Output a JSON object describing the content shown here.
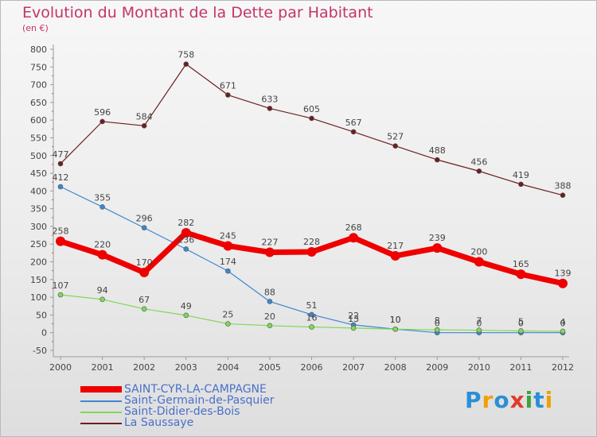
{
  "title": "Evolution du Montant de la Dette par Habitant",
  "unit_label": "(en €)",
  "logo": {
    "text": "Proxiti",
    "letters": [
      "P",
      "r",
      "o",
      "x",
      "i",
      "t",
      "i"
    ],
    "colors": [
      "#2b8fd6",
      "#f0a000",
      "#2b8fd6",
      "#e03b2e",
      "#3da33a",
      "#2b8fd6",
      "#f0a000"
    ]
  },
  "chart_data": {
    "type": "line",
    "categories": [
      "2000",
      "2001",
      "2002",
      "2003",
      "2004",
      "2005",
      "2006",
      "2007",
      "2008",
      "2009",
      "2010",
      "2011",
      "2012"
    ],
    "ylim": [
      -50,
      800
    ],
    "yticks": [
      -50,
      0,
      50,
      100,
      150,
      200,
      250,
      300,
      350,
      400,
      450,
      500,
      550,
      600,
      650,
      700,
      750,
      800
    ],
    "grid": false,
    "legend_position": "bottom-left",
    "series": [
      {
        "name": "SAINT-CYR-LA-CAMPAGNE",
        "color": "#ee0000",
        "values": [
          258,
          220,
          170,
          282,
          245,
          227,
          228,
          268,
          217,
          239,
          200,
          165,
          139
        ],
        "labels": [
          "258",
          "220",
          "170",
          "282",
          "245",
          "227",
          "228",
          "268",
          "217",
          "239",
          "200",
          "165",
          "139"
        ]
      },
      {
        "name": "Saint-Germain-de-Pasquier",
        "color": "#3c87d2",
        "values": [
          412,
          355,
          296,
          236,
          174,
          88,
          51,
          22,
          10,
          0,
          0,
          0,
          0
        ],
        "labels": [
          "412",
          "355",
          "296",
          "236",
          "174",
          "88",
          "51",
          "22",
          "10",
          "0",
          "0",
          "0",
          "0"
        ]
      },
      {
        "name": "Saint-Didier-des-Bois",
        "color": "#7ed957",
        "values": [
          107,
          94,
          67,
          49,
          25,
          20,
          16,
          13,
          10,
          8,
          7,
          5,
          4
        ],
        "labels": [
          "107",
          "94",
          "67",
          "49",
          "25",
          "20",
          "16",
          "13",
          "10",
          "8",
          "7",
          "5",
          "4"
        ]
      },
      {
        "name": "La Saussaye",
        "color": "#6b1f22",
        "values": [
          477,
          596,
          584,
          758,
          671,
          633,
          605,
          567,
          527,
          488,
          456,
          419,
          388
        ],
        "labels": [
          "477",
          "596",
          "584",
          "758",
          "671",
          "633",
          "605",
          "567",
          "527",
          "488",
          "456",
          "419",
          "388"
        ]
      }
    ]
  }
}
